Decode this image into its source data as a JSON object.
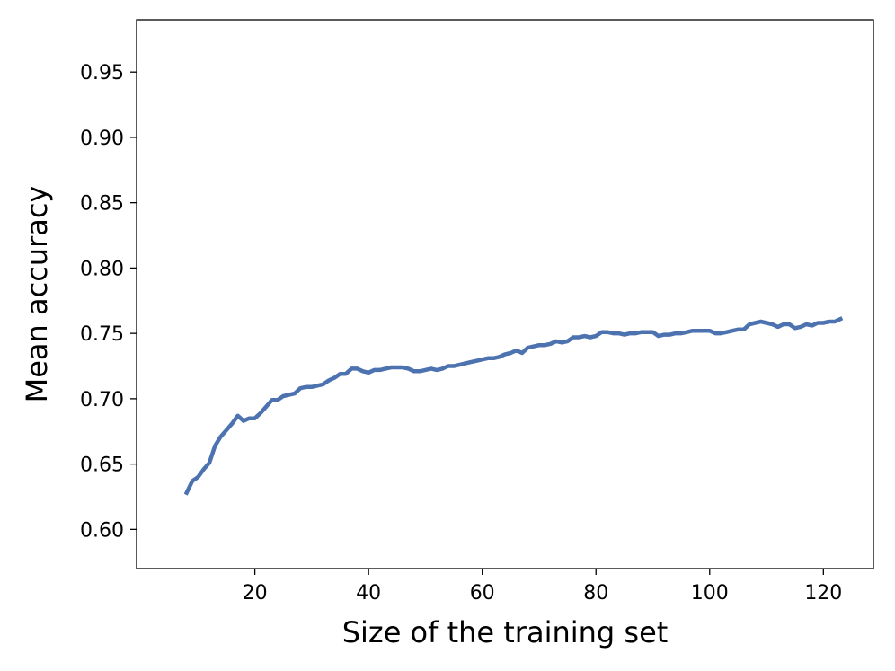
{
  "chart_data": {
    "type": "line",
    "title": "",
    "xlabel": "Size of the training set",
    "ylabel": "Mean accuracy",
    "xlim": [
      -0.8,
      128.8
    ],
    "ylim": [
      0.57,
      0.99
    ],
    "xticks": [
      20,
      40,
      60,
      80,
      100,
      120
    ],
    "xtick_labels": [
      "20",
      "40",
      "60",
      "80",
      "100",
      "120"
    ],
    "yticks": [
      0.6,
      0.65,
      0.7,
      0.75,
      0.8,
      0.85,
      0.9,
      0.95
    ],
    "ytick_labels": [
      "0.60",
      "0.65",
      "0.70",
      "0.75",
      "0.80",
      "0.85",
      "0.90",
      "0.95"
    ],
    "grid": false,
    "series": [
      {
        "color": "#4c72b0",
        "x": [
          8,
          9,
          10,
          11,
          12,
          13,
          14,
          15,
          16,
          17,
          18,
          19,
          20,
          21,
          22,
          23,
          24,
          25,
          26,
          27,
          28,
          29,
          30,
          31,
          32,
          33,
          34,
          35,
          36,
          37,
          38,
          39,
          40,
          41,
          42,
          43,
          44,
          45,
          46,
          47,
          48,
          49,
          50,
          51,
          52,
          53,
          54,
          55,
          56,
          57,
          58,
          59,
          60,
          61,
          62,
          63,
          64,
          65,
          66,
          67,
          68,
          69,
          70,
          71,
          72,
          73,
          74,
          75,
          76,
          77,
          78,
          79,
          80,
          81,
          82,
          83,
          84,
          85,
          86,
          87,
          88,
          89,
          90,
          91,
          92,
          93,
          94,
          95,
          96,
          97,
          98,
          99,
          100,
          101,
          102,
          103,
          104,
          105,
          106,
          107,
          108,
          109,
          110,
          111,
          112,
          113,
          114,
          115,
          116,
          117,
          118,
          119,
          120,
          121,
          122,
          123
        ],
        "y": [
          0.628,
          0.637,
          0.64,
          0.646,
          0.651,
          0.664,
          0.671,
          0.676,
          0.681,
          0.687,
          0.683,
          0.685,
          0.685,
          0.689,
          0.694,
          0.699,
          0.699,
          0.702,
          0.703,
          0.704,
          0.708,
          0.709,
          0.709,
          0.71,
          0.711,
          0.714,
          0.716,
          0.719,
          0.719,
          0.723,
          0.723,
          0.721,
          0.72,
          0.722,
          0.722,
          0.723,
          0.724,
          0.724,
          0.724,
          0.723,
          0.721,
          0.721,
          0.722,
          0.723,
          0.722,
          0.723,
          0.725,
          0.725,
          0.726,
          0.727,
          0.728,
          0.729,
          0.73,
          0.731,
          0.731,
          0.732,
          0.734,
          0.735,
          0.737,
          0.735,
          0.739,
          0.74,
          0.741,
          0.741,
          0.742,
          0.744,
          0.743,
          0.744,
          0.747,
          0.747,
          0.748,
          0.747,
          0.748,
          0.751,
          0.751,
          0.75,
          0.75,
          0.749,
          0.75,
          0.75,
          0.751,
          0.751,
          0.751,
          0.748,
          0.749,
          0.749,
          0.75,
          0.75,
          0.751,
          0.752,
          0.752,
          0.752,
          0.752,
          0.75,
          0.75,
          0.751,
          0.752,
          0.753,
          0.753,
          0.757,
          0.758,
          0.759,
          0.758,
          0.757,
          0.755,
          0.757,
          0.757,
          0.754,
          0.755,
          0.757,
          0.756,
          0.758,
          0.758,
          0.759,
          0.759,
          0.761
        ]
      }
    ]
  }
}
